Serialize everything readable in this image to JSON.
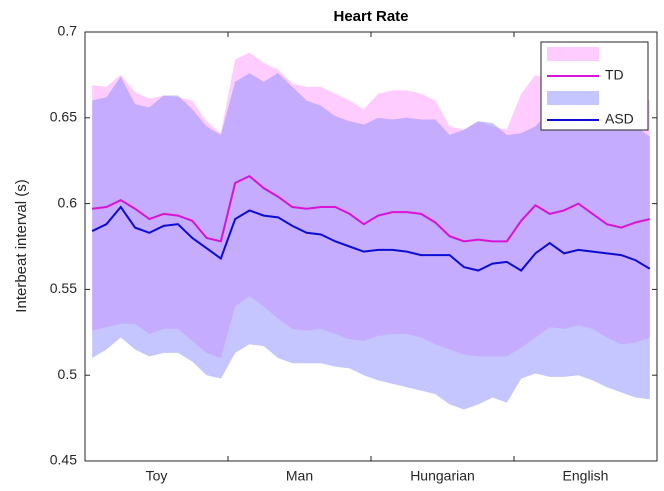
{
  "chart_data": {
    "type": "band-line",
    "title": "Heart Rate",
    "y_label": "Interbeat interval (s)",
    "x": [
      1,
      2,
      3,
      4,
      5,
      6,
      7,
      8,
      9,
      10,
      11,
      12,
      13,
      14,
      15,
      16,
      17,
      18,
      19,
      20,
      21,
      22,
      23,
      24,
      25,
      26,
      27,
      28,
      29,
      30,
      31,
      32,
      33,
      34,
      35,
      36,
      37,
      38,
      39,
      40
    ],
    "xlim": [
      0.5,
      40.5
    ],
    "xticks": [
      {
        "value": 5.5,
        "label": "Toy"
      },
      {
        "value": 15.5,
        "label": "Man"
      },
      {
        "value": 25.5,
        "label": "Hungarian"
      },
      {
        "value": 35.5,
        "label": "English"
      }
    ],
    "ylim": [
      0.45,
      0.7
    ],
    "yticks": [
      0.45,
      0.5,
      0.55,
      0.6,
      0.65,
      0.7
    ],
    "legend": "upper right",
    "series": [
      {
        "name": "TD",
        "color": "#d813d8",
        "band_color": "#ff99ff",
        "values": [
          0.597,
          0.598,
          0.602,
          0.597,
          0.591,
          0.594,
          0.593,
          0.59,
          0.58,
          0.578,
          0.612,
          0.616,
          0.609,
          0.604,
          0.598,
          0.597,
          0.598,
          0.598,
          0.594,
          0.588,
          0.593,
          0.595,
          0.595,
          0.594,
          0.589,
          0.581,
          0.578,
          0.579,
          0.578,
          0.578,
          0.59,
          0.599,
          0.594,
          0.596,
          0.6,
          0.594,
          0.588,
          0.586,
          0.589,
          0.591
        ],
        "upper": [
          0.669,
          0.668,
          0.675,
          0.665,
          0.661,
          0.663,
          0.662,
          0.66,
          0.648,
          0.641,
          0.684,
          0.688,
          0.682,
          0.678,
          0.67,
          0.668,
          0.668,
          0.664,
          0.66,
          0.655,
          0.664,
          0.666,
          0.666,
          0.664,
          0.66,
          0.645,
          0.643,
          0.648,
          0.645,
          0.643,
          0.664,
          0.675,
          0.672,
          0.671,
          0.669,
          0.666,
          0.66,
          0.657,
          0.662,
          0.66
        ],
        "lower": [
          0.526,
          0.528,
          0.53,
          0.53,
          0.524,
          0.527,
          0.527,
          0.52,
          0.513,
          0.51,
          0.54,
          0.546,
          0.54,
          0.533,
          0.527,
          0.526,
          0.527,
          0.524,
          0.521,
          0.52,
          0.523,
          0.524,
          0.524,
          0.522,
          0.518,
          0.515,
          0.512,
          0.511,
          0.511,
          0.511,
          0.516,
          0.522,
          0.528,
          0.527,
          0.529,
          0.527,
          0.522,
          0.518,
          0.519,
          0.522
        ]
      },
      {
        "name": "ASD",
        "color": "#0c0cd2",
        "band_color": "#8c8cff",
        "values": [
          0.584,
          0.588,
          0.598,
          0.586,
          0.583,
          0.587,
          0.588,
          0.58,
          0.574,
          0.568,
          0.591,
          0.596,
          0.593,
          0.592,
          0.587,
          0.583,
          0.582,
          0.578,
          0.575,
          0.572,
          0.573,
          0.573,
          0.572,
          0.57,
          0.57,
          0.57,
          0.563,
          0.561,
          0.565,
          0.566,
          0.561,
          0.571,
          0.577,
          0.571,
          0.573,
          0.572,
          0.571,
          0.57,
          0.567,
          0.562
        ],
        "upper": [
          0.66,
          0.662,
          0.674,
          0.658,
          0.656,
          0.663,
          0.663,
          0.655,
          0.645,
          0.64,
          0.671,
          0.676,
          0.671,
          0.676,
          0.668,
          0.66,
          0.657,
          0.651,
          0.648,
          0.646,
          0.65,
          0.649,
          0.65,
          0.649,
          0.649,
          0.64,
          0.643,
          0.648,
          0.647,
          0.64,
          0.641,
          0.645,
          0.654,
          0.65,
          0.65,
          0.649,
          0.65,
          0.647,
          0.645,
          0.639
        ],
        "lower": [
          0.51,
          0.515,
          0.522,
          0.515,
          0.511,
          0.513,
          0.513,
          0.508,
          0.5,
          0.498,
          0.513,
          0.518,
          0.517,
          0.51,
          0.507,
          0.507,
          0.507,
          0.505,
          0.504,
          0.5,
          0.497,
          0.495,
          0.493,
          0.491,
          0.489,
          0.483,
          0.48,
          0.483,
          0.487,
          0.484,
          0.498,
          0.501,
          0.499,
          0.499,
          0.5,
          0.497,
          0.493,
          0.49,
          0.487,
          0.486
        ]
      }
    ]
  }
}
